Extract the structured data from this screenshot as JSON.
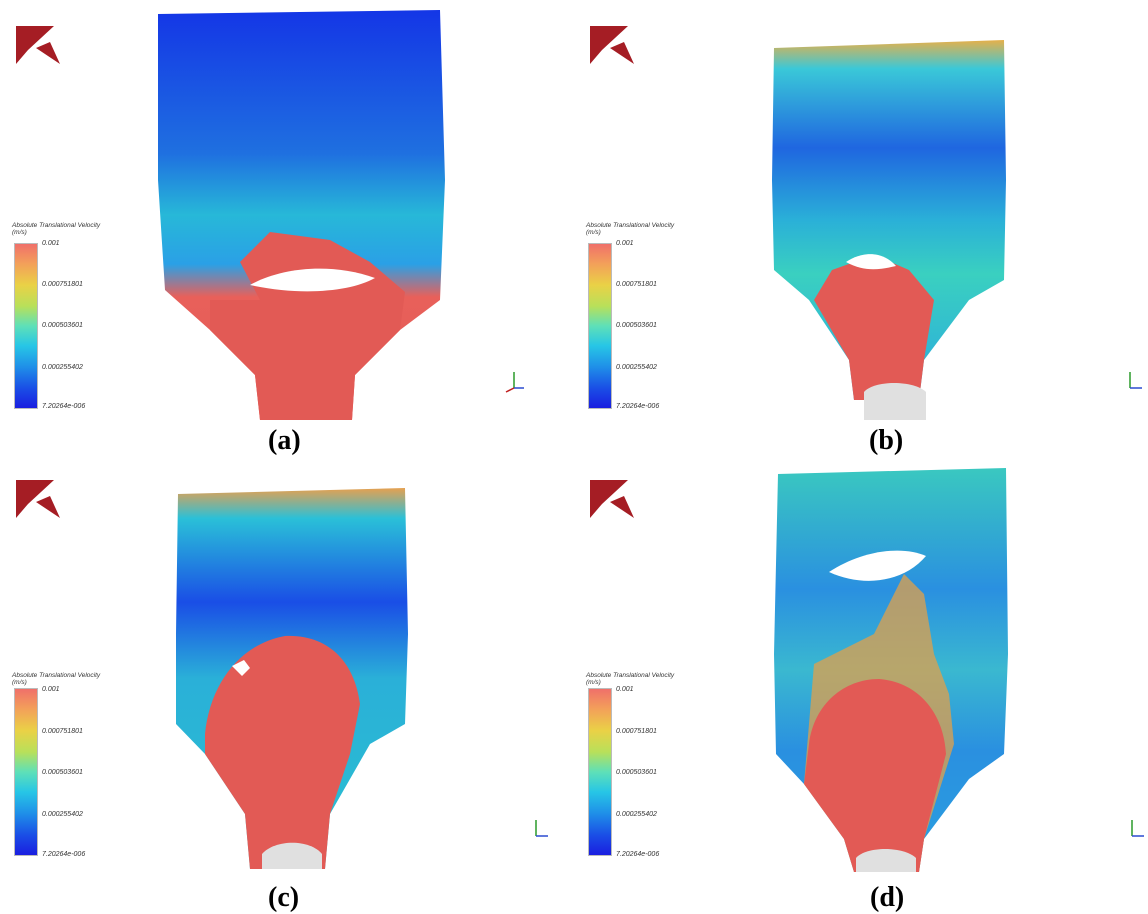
{
  "legend": {
    "title": "Absolute Translational Velocity",
    "unit": "(m/s)",
    "ticks": [
      "0.001",
      "0.000751801",
      "0.000503601",
      "0.000255402",
      "7.20264e-006"
    ]
  },
  "colors": {
    "logo": "#a51d24",
    "high": "#e8605a",
    "low": "#1a2ae0"
  },
  "panels": [
    {
      "id": "a",
      "caption": "(a)"
    },
    {
      "id": "b",
      "caption": "(b)"
    },
    {
      "id": "c",
      "caption": "(c)"
    },
    {
      "id": "d",
      "caption": "(d)"
    }
  ]
}
